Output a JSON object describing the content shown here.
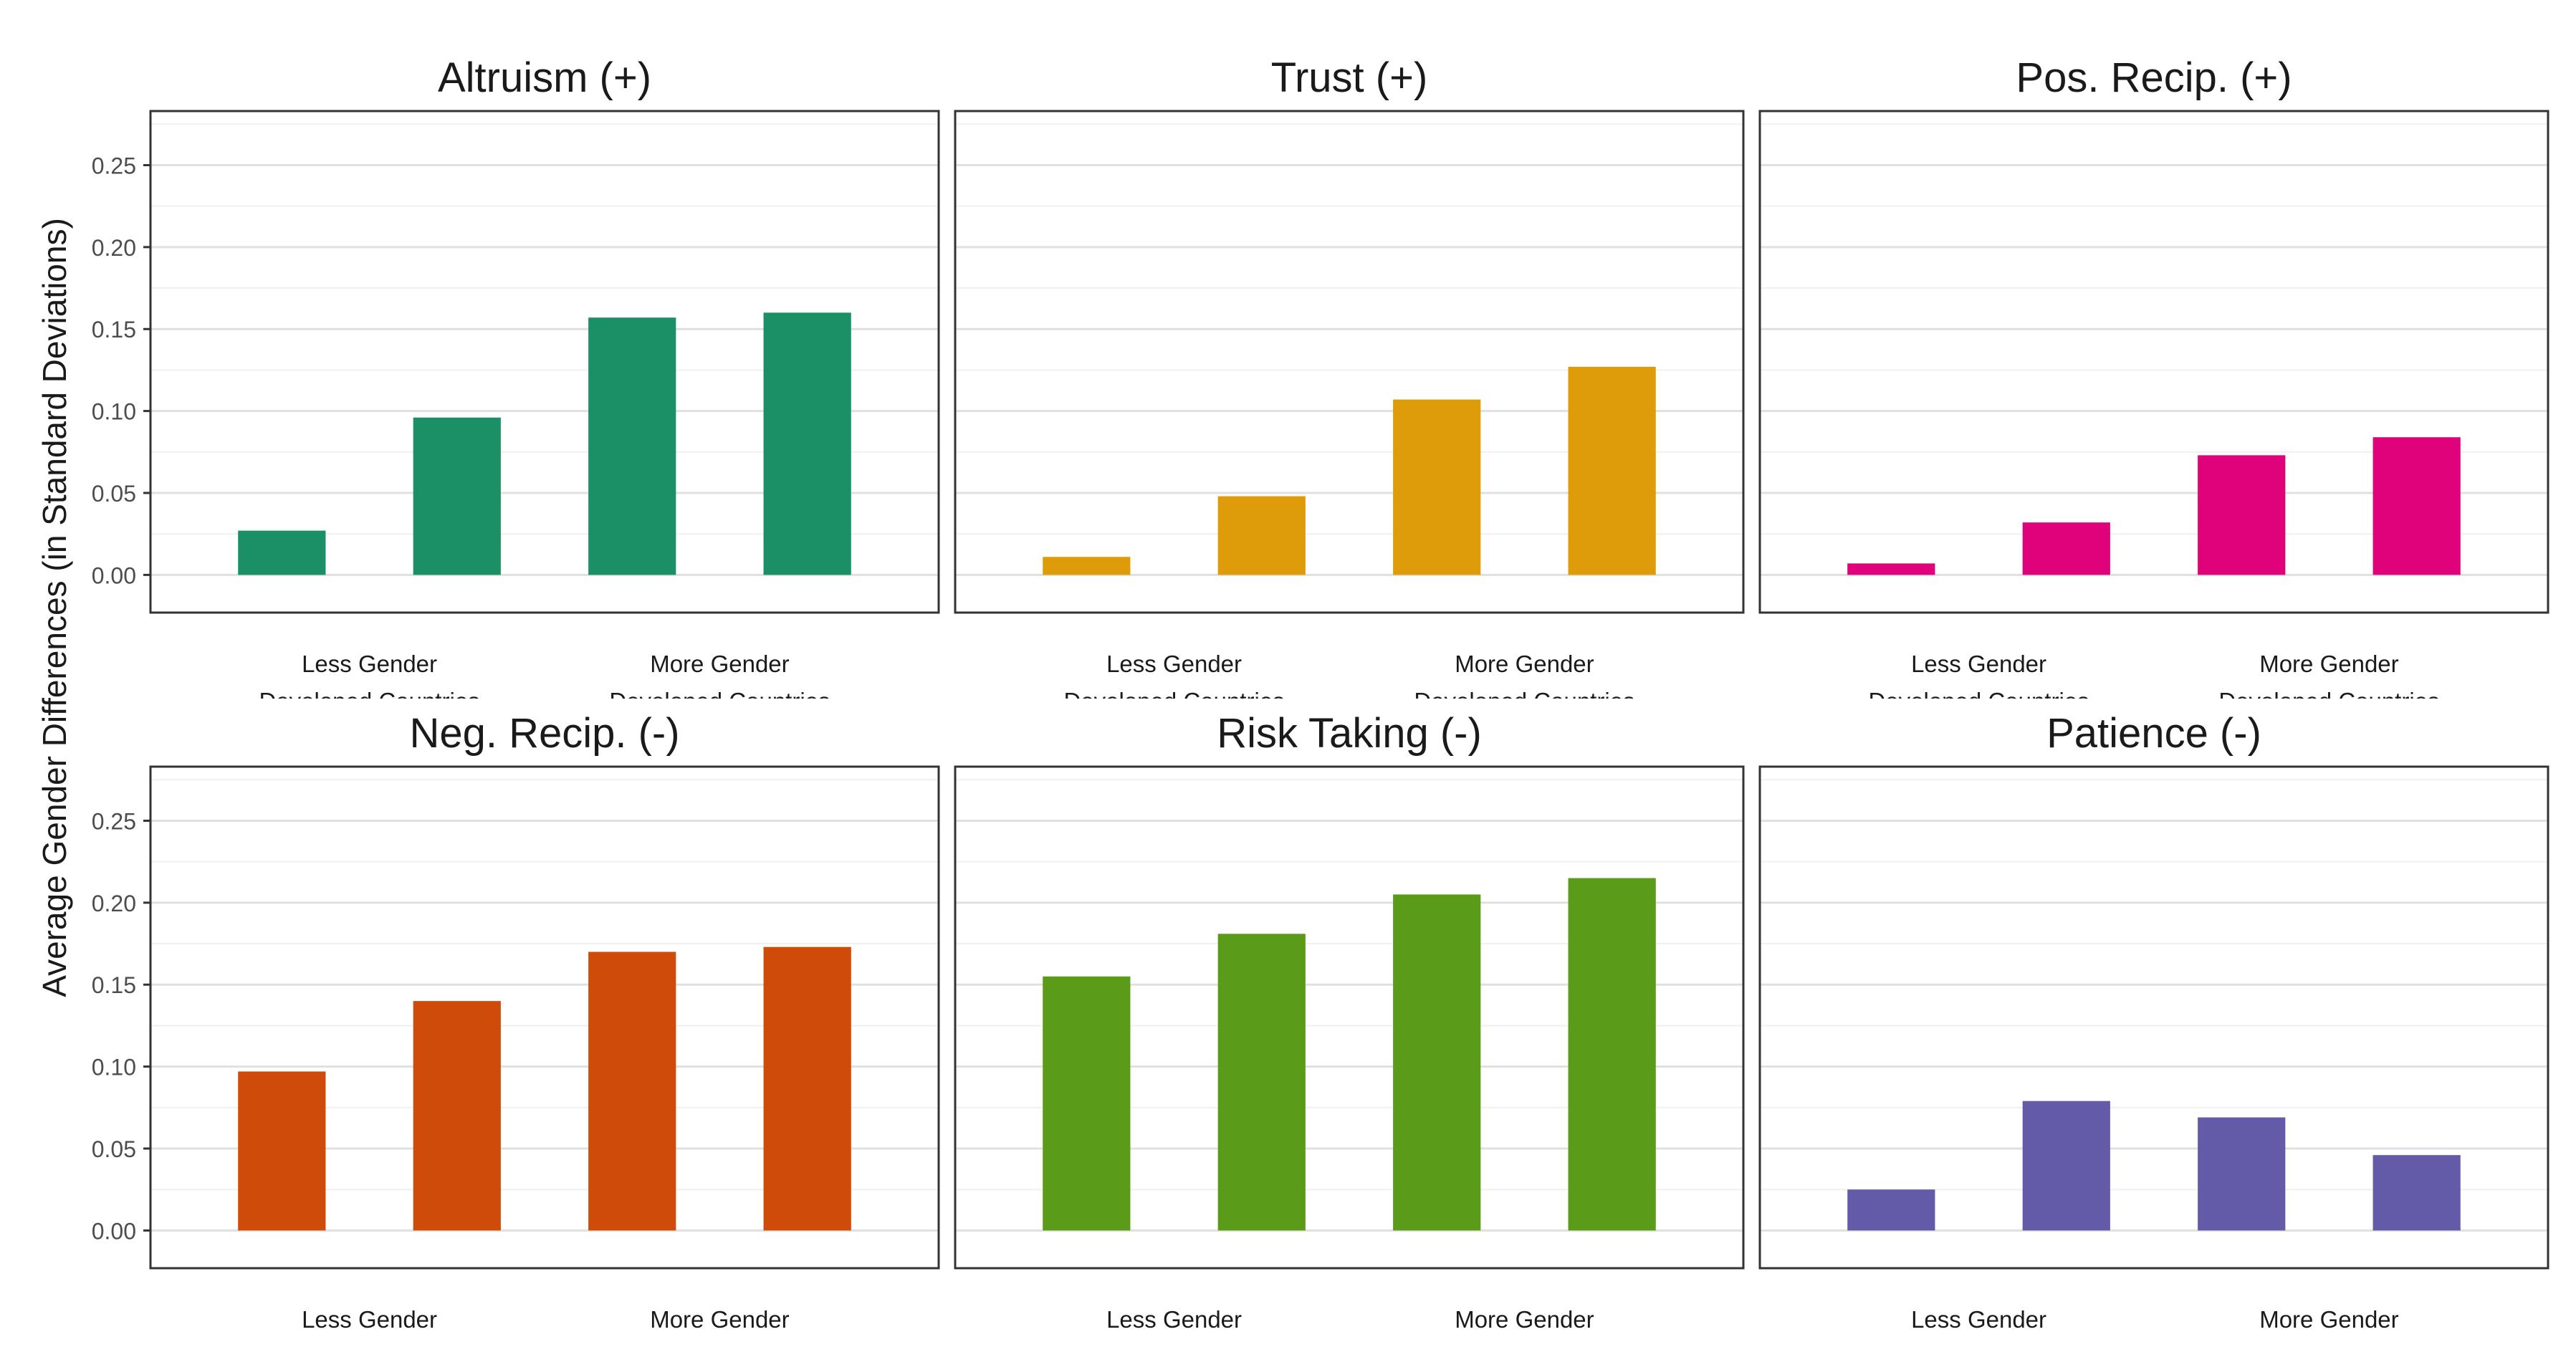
{
  "y_axis_label": "Average Gender Differences (in Standard Deviations)",
  "y_tick_labels": [
    "0.00",
    "0.05",
    "0.10",
    "0.15",
    "0.20",
    "0.25"
  ],
  "x_tick_labels": [
    [
      "Less Gender",
      "Developed Countries"
    ],
    [
      "More Gender",
      "Developed Countries"
    ]
  ],
  "chart_data": [
    {
      "type": "bar",
      "title": "Altruism (+)",
      "color": "#1b9066",
      "values": [
        0.027,
        0.096,
        0.157,
        0.16
      ],
      "ylim": [
        -0.023,
        0.283
      ],
      "yticks": [
        0,
        0.05,
        0.1,
        0.15,
        0.2,
        0.25
      ],
      "grid": true
    },
    {
      "type": "bar",
      "title": "Trust (+)",
      "color": "#de9c0a",
      "values": [
        0.011,
        0.048,
        0.107,
        0.127
      ],
      "ylim": [
        -0.023,
        0.283
      ],
      "yticks": [
        0,
        0.05,
        0.1,
        0.15,
        0.2,
        0.25
      ],
      "grid": true
    },
    {
      "type": "bar",
      "title": "Pos. Recip. (+)",
      "color": "#e0027a",
      "values": [
        0.007,
        0.032,
        0.073,
        0.084
      ],
      "ylim": [
        -0.023,
        0.283
      ],
      "yticks": [
        0,
        0.05,
        0.1,
        0.15,
        0.2,
        0.25
      ],
      "grid": true
    },
    {
      "type": "bar",
      "title": "Neg. Recip. (-)",
      "color": "#cf4b09",
      "values": [
        0.097,
        0.14,
        0.17,
        0.173
      ],
      "ylim": [
        -0.023,
        0.283
      ],
      "yticks": [
        0,
        0.05,
        0.1,
        0.15,
        0.2,
        0.25
      ],
      "grid": true
    },
    {
      "type": "bar",
      "title": "Risk Taking (-)",
      "color": "#5a9b19",
      "values": [
        0.155,
        0.181,
        0.205,
        0.215
      ],
      "ylim": [
        -0.023,
        0.283
      ],
      "yticks": [
        0,
        0.05,
        0.1,
        0.15,
        0.2,
        0.25
      ],
      "grid": true
    },
    {
      "type": "bar",
      "title": "Patience (-)",
      "color": "#635ba8",
      "values": [
        0.025,
        0.079,
        0.069,
        0.046
      ],
      "ylim": [
        -0.023,
        0.283
      ],
      "yticks": [
        0,
        0.05,
        0.1,
        0.15,
        0.2,
        0.25
      ],
      "grid": true
    }
  ]
}
